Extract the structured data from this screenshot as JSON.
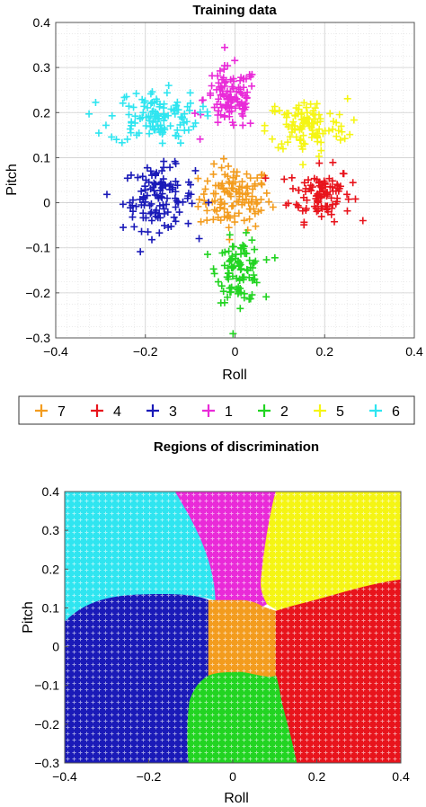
{
  "chart_data": [
    {
      "type": "scatter",
      "title": "Training data",
      "xlabel": "Roll",
      "ylabel": "Pitch",
      "xlim": [
        -0.4,
        0.4
      ],
      "ylim": [
        -0.3,
        0.4
      ],
      "x_ticks": [
        "-0.4",
        "-0.2",
        "0",
        "0.2",
        "0.4"
      ],
      "y_ticks": [
        "-0.3",
        "-0.2",
        "-0.1",
        "0",
        "0.1",
        "0.2",
        "0.3",
        "0.4"
      ],
      "x_tick_values": [
        -0.4,
        -0.2,
        0,
        0.2,
        0.4
      ],
      "y_tick_values": [
        -0.3,
        -0.2,
        -0.1,
        0,
        0.1,
        0.2,
        0.3,
        0.4
      ],
      "grid": true,
      "marker": "+",
      "clusters": [
        {
          "class": "7",
          "color": "#f39c1e",
          "center": [
            0.0,
            0.01
          ],
          "spread": [
            0.04,
            0.035
          ],
          "n": 120
        },
        {
          "class": "4",
          "color": "#e8141c",
          "center": [
            0.19,
            0.02
          ],
          "spread": [
            0.035,
            0.03
          ],
          "n": 100
        },
        {
          "class": "3",
          "color": "#1a1ab8",
          "center": [
            -0.17,
            0.01
          ],
          "spread": [
            0.04,
            0.035
          ],
          "n": 120
        },
        {
          "class": "1",
          "color": "#e92ad8",
          "center": [
            -0.01,
            0.23
          ],
          "spread": [
            0.03,
            0.035
          ],
          "n": 110
        },
        {
          "class": "2",
          "color": "#22d422",
          "center": [
            0.01,
            -0.15
          ],
          "spread": [
            0.025,
            0.035
          ],
          "n": 100
        },
        {
          "class": "5",
          "color": "#f5f514",
          "center": [
            0.16,
            0.17
          ],
          "spread": [
            0.045,
            0.03
          ],
          "n": 110
        },
        {
          "class": "6",
          "color": "#2fe5f0",
          "center": [
            -0.18,
            0.19
          ],
          "spread": [
            0.05,
            0.03
          ],
          "n": 120
        }
      ]
    },
    {
      "type": "heatmap",
      "title": "Regions of discrimination",
      "xlabel": "Roll",
      "ylabel": "Pitch",
      "xlim": [
        -0.4,
        0.4
      ],
      "ylim": [
        -0.3,
        0.4
      ],
      "x_ticks": [
        "-0.4",
        "-0.2",
        "0",
        "0.2",
        "0.4"
      ],
      "y_ticks": [
        "-0.3",
        "-0.2",
        "-0.1",
        "0",
        "0.1",
        "0.2",
        "0.3",
        "0.4"
      ],
      "x_tick_values": [
        -0.4,
        -0.2,
        0,
        0.2,
        0.4
      ],
      "y_tick_values": [
        -0.3,
        -0.2,
        -0.1,
        0,
        0.1,
        0.2,
        0.3,
        0.4
      ],
      "regions": [
        {
          "class": "6",
          "color": "#2fe5f0"
        },
        {
          "class": "1",
          "color": "#e92ad8"
        },
        {
          "class": "5",
          "color": "#f5f514"
        },
        {
          "class": "3",
          "color": "#1a1ab8"
        },
        {
          "class": "7",
          "color": "#f39c1e"
        },
        {
          "class": "4",
          "color": "#e8141c"
        },
        {
          "class": "2",
          "color": "#22d422"
        }
      ]
    }
  ],
  "legend": {
    "entries": [
      {
        "label": "7",
        "color": "#f39c1e"
      },
      {
        "label": "4",
        "color": "#e8141c"
      },
      {
        "label": "3",
        "color": "#1a1ab8"
      },
      {
        "label": "1",
        "color": "#e92ad8"
      },
      {
        "label": "2",
        "color": "#22d422"
      },
      {
        "label": "5",
        "color": "#f5f514"
      },
      {
        "label": "6",
        "color": "#2fe5f0"
      }
    ]
  }
}
